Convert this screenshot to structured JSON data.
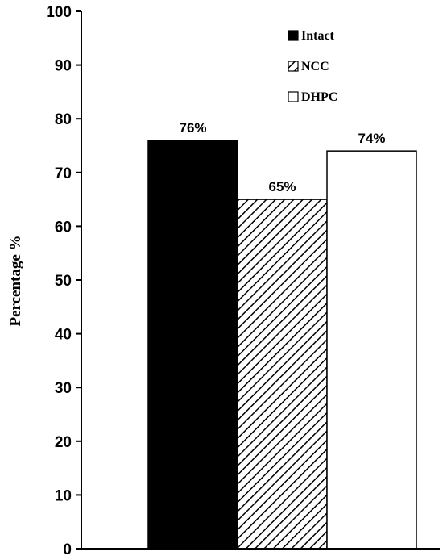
{
  "chart_data": {
    "type": "bar",
    "categories": [
      "Intact",
      "NCC",
      "DHPC"
    ],
    "values": [
      76,
      65,
      74
    ],
    "data_labels": [
      "76%",
      "65%",
      "74%"
    ],
    "title": "",
    "xlabel": "",
    "ylabel": "Percentage %",
    "ylim": [
      0,
      100
    ],
    "yticks": [
      "0",
      "10",
      "20",
      "30",
      "40",
      "50",
      "60",
      "70",
      "80",
      "90",
      "100"
    ],
    "grid": false,
    "legend": {
      "placement": "top-right",
      "entries": [
        {
          "label": "Intact",
          "fill": "solid-black"
        },
        {
          "label": "NCC",
          "fill": "diagonal-hatch"
        },
        {
          "label": "DHPC",
          "fill": "white"
        }
      ]
    },
    "colors": {
      "intact": "#000000",
      "ncc_hatch": "#000000",
      "dhpc": "#ffffff",
      "outline": "#000000"
    }
  }
}
